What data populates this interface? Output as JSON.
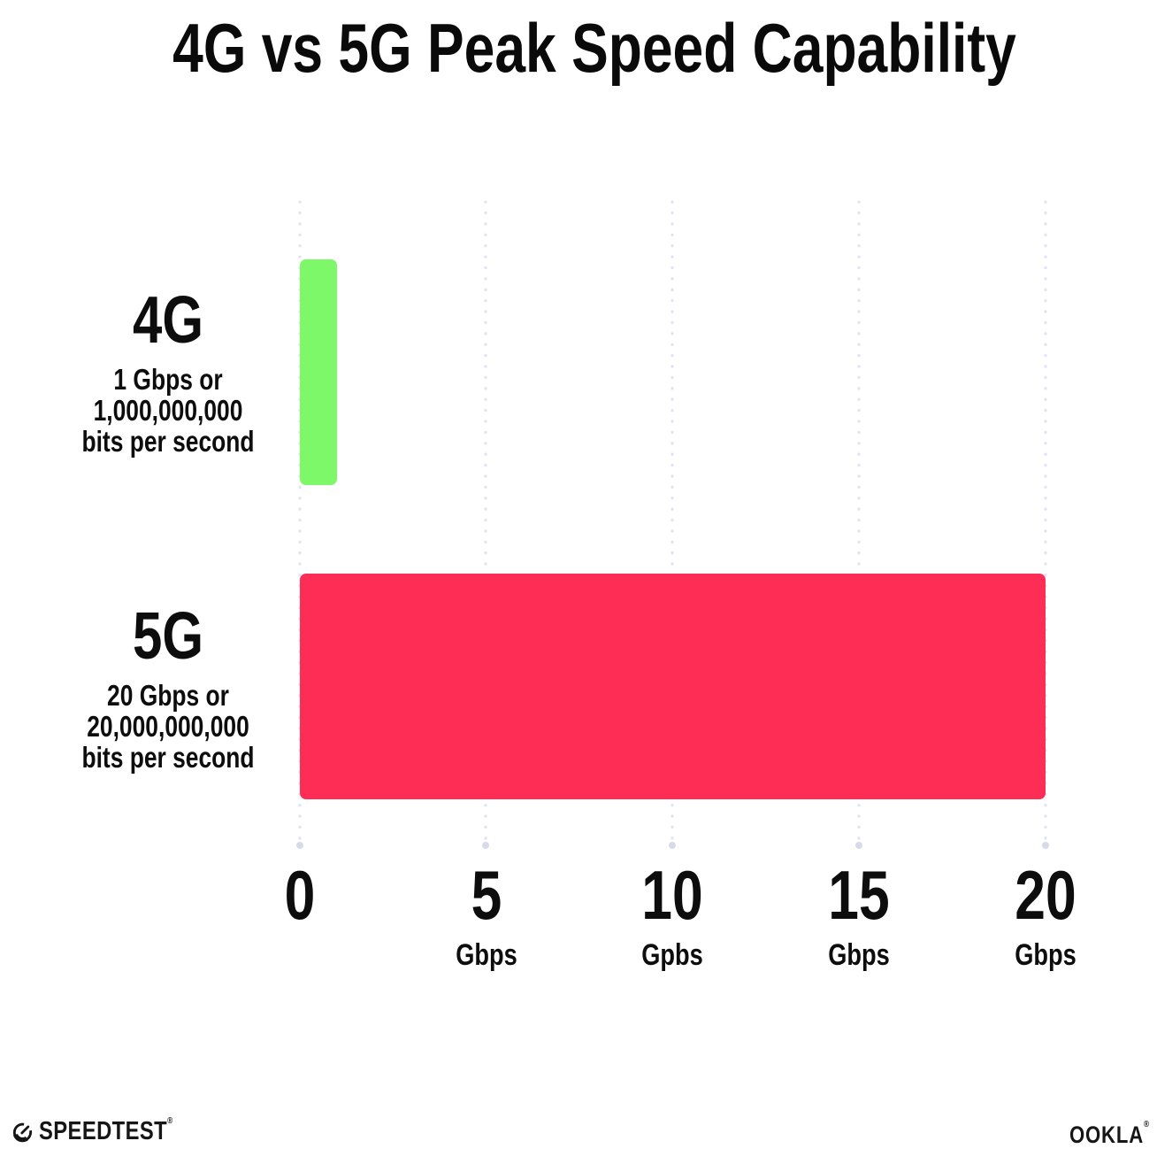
{
  "title": "4G vs 5G Peak Speed Capability",
  "chart_data": {
    "type": "bar",
    "orientation": "horizontal",
    "title": "4G vs 5G Peak Speed Capability",
    "categories": [
      "4G",
      "5G"
    ],
    "values": [
      1,
      20
    ],
    "value_unit": "Gbps",
    "bar_colors": [
      "#7df868",
      "#fd2d55"
    ],
    "xlim": [
      0,
      20
    ],
    "x_ticks": [
      0,
      5,
      10,
      15,
      20
    ],
    "x_tick_labels": [
      "0",
      "5 Gbps",
      "10 Gpbs",
      "15 Gbps",
      "20 Gbps"
    ],
    "grid": "dotted vertical gridlines, light lavender",
    "legend": "none",
    "annotations": [
      "4G: 1 Gbps or 1,000,000,000 bits per second",
      "5G: 20 Gbps or 20,000,000,000 bits per second"
    ]
  },
  "rows": [
    {
      "label": "4G",
      "desc": [
        "1 Gbps or",
        "1,000,000,000",
        "bits per second"
      ]
    },
    {
      "label": "5G",
      "desc": [
        "20 Gbps or",
        "20,000,000,000",
        "bits per second"
      ]
    }
  ],
  "axis": {
    "ticks": [
      {
        "num": "0",
        "unit": ""
      },
      {
        "num": "5",
        "unit": "Gbps"
      },
      {
        "num": "10",
        "unit": "Gpbs"
      },
      {
        "num": "15",
        "unit": "Gbps"
      },
      {
        "num": "20",
        "unit": "Gbps"
      }
    ]
  },
  "footer": {
    "speedtest": "SPEEDTEST",
    "speedtest_mark": "®",
    "ookla": "OOKLA",
    "ookla_mark": "®"
  },
  "colors": {
    "bar_4g": "#7df868",
    "bar_5g": "#fd2d55",
    "text": "#0d0d0d",
    "grid_dot": "#dfe3f0",
    "grid_end_dot": "#d6dbe9",
    "background": "#ffffff"
  }
}
